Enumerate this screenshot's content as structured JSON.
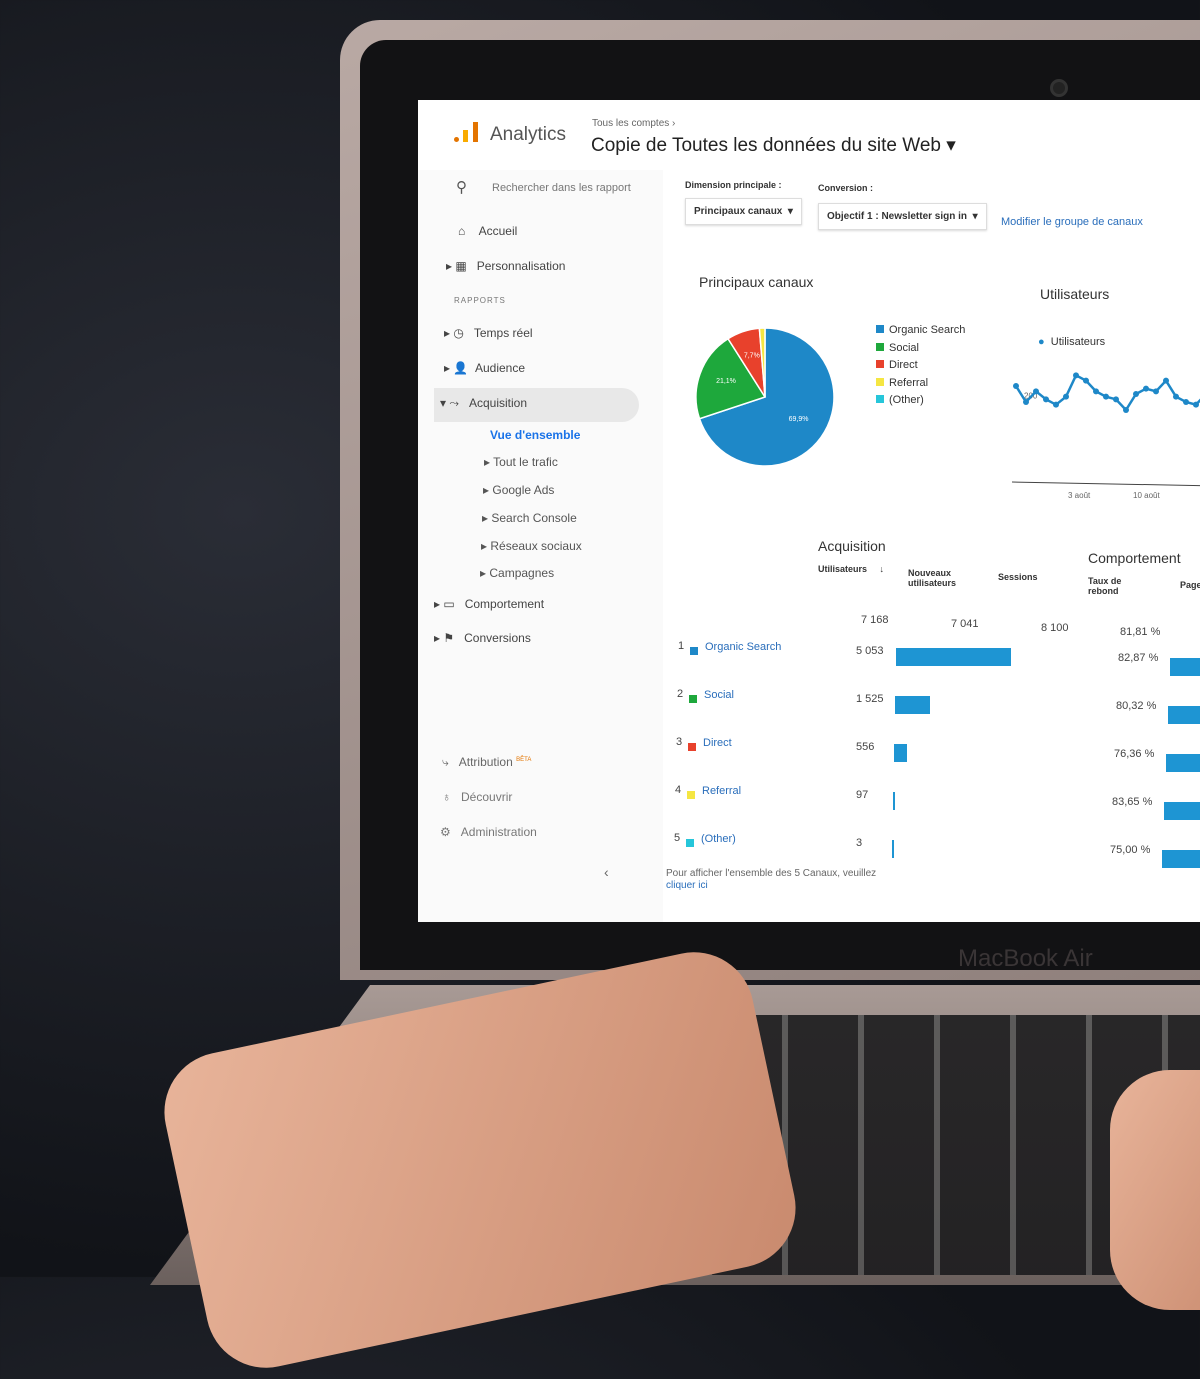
{
  "device": {
    "brand": "MacBook Air"
  },
  "header": {
    "app_name": "Analytics",
    "breadcrumb": "Tous les comptes",
    "property_title": "Copie de Toutes les données du site Web"
  },
  "sidebar": {
    "search_placeholder": "Rechercher dans les rapport",
    "items": [
      {
        "label": "Accueil",
        "icon": "home-icon"
      },
      {
        "label": "Personnalisation",
        "icon": "dashboard-icon"
      }
    ],
    "section": "RAPPORTS",
    "reports": [
      {
        "label": "Temps réel",
        "icon": "clock-icon"
      },
      {
        "label": "Audience",
        "icon": "person-icon"
      },
      {
        "label": "Acquisition",
        "icon": "acquisition-icon"
      }
    ],
    "acquisition_sub": [
      "Vue d'ensemble",
      "Tout le trafic",
      "Google Ads",
      "Search Console",
      "Réseaux sociaux",
      "Campagnes"
    ],
    "reports2": [
      {
        "label": "Comportement",
        "icon": "behavior-icon"
      },
      {
        "label": "Conversions",
        "icon": "flag-icon"
      }
    ],
    "bottom": [
      {
        "label": "Attribution",
        "badge": "BÊTA",
        "icon": "attribution-icon"
      },
      {
        "label": "Découvrir",
        "icon": "lightbulb-icon"
      },
      {
        "label": "Administration",
        "icon": "gear-icon"
      }
    ]
  },
  "controls": {
    "dimension_label": "Dimension principale :",
    "dimension_value": "Principaux canaux",
    "conversion_label": "Conversion :",
    "conversion_value": "Objectif 1 : Newsletter sign in",
    "modify_link": "Modifier le groupe de canaux"
  },
  "colors": {
    "organic": "#1e88c8",
    "social": "#1ea83c",
    "direct": "#e8412c",
    "referral": "#f5e642",
    "other": "#26c6da",
    "accent": "#1a73e8"
  },
  "chart_data": [
    {
      "type": "pie",
      "title": "Principaux canaux",
      "categories": [
        "Organic Search",
        "Social",
        "Direct",
        "Referral",
        "(Other)"
      ],
      "values": [
        69.9,
        21.1,
        7.7,
        1.3,
        0.0
      ],
      "labels": [
        "69,9%",
        "21,1%",
        "7,7%"
      ],
      "legend": "right"
    },
    {
      "type": "line",
      "title": "Utilisateurs",
      "series": [
        {
          "name": "Utilisateurs",
          "values": [
            330,
            270,
            310,
            280,
            260,
            290,
            370,
            350,
            310,
            290,
            280,
            240,
            300,
            320,
            310,
            350,
            290,
            270,
            260,
            300,
            310
          ]
        }
      ],
      "yticks": [
        "400",
        "200"
      ],
      "xticks": [
        "3 août",
        "10 août"
      ],
      "ylim": [
        0,
        450
      ]
    }
  ],
  "table": {
    "group_acq": "Acquisition",
    "group_beh": "Comportement",
    "headers": [
      "Utilisateurs",
      "Nouveaux utilisateurs",
      "Sessions",
      "Taux de rebond",
      "Page"
    ],
    "totals": {
      "users": "7 168",
      "new_users": "7 041",
      "sessions": "8 100",
      "bounce": "81,81 %"
    },
    "rows": [
      {
        "rank": "1",
        "channel": "Organic Search",
        "users": "5 053",
        "users_value": 5053,
        "bounce": "82,87 %"
      },
      {
        "rank": "2",
        "channel": "Social",
        "users": "1 525",
        "users_value": 1525,
        "bounce": "80,32 %"
      },
      {
        "rank": "3",
        "channel": "Direct",
        "users": "556",
        "users_value": 556,
        "bounce": "76,36 %"
      },
      {
        "rank": "4",
        "channel": "Referral",
        "users": "97",
        "users_value": 97,
        "bounce": "83,65 %"
      },
      {
        "rank": "5",
        "channel": "(Other)",
        "users": "3",
        "users_value": 3,
        "bounce": "75,00 %"
      }
    ],
    "footer": "Pour afficher l'ensemble des 5 Canaux, veuillez",
    "footer_link": "cliquer ici"
  }
}
